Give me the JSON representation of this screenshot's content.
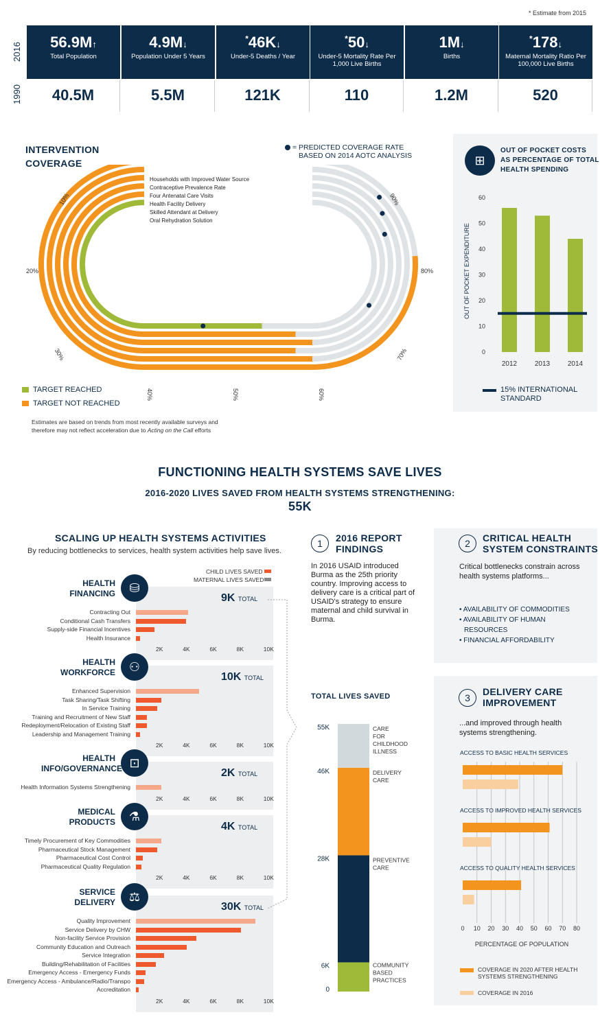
{
  "footnote": "* Estimate from 2015",
  "years": {
    "top": "2016",
    "bottom": "1990"
  },
  "stats": [
    {
      "v2016": "56.9M",
      "arrow": "↑",
      "star": "",
      "label": "Total Population",
      "v1990": "40.5M"
    },
    {
      "v2016": "4.9M",
      "arrow": "↓",
      "star": "",
      "label": "Population Under 5 Years",
      "v1990": "5.5M"
    },
    {
      "v2016": "46K",
      "arrow": "↓",
      "star": "*",
      "label": "Under-5 Deaths / Year",
      "v1990": "121K"
    },
    {
      "v2016": "50",
      "arrow": "↓",
      "star": "*",
      "label": "Under-5 Mortality Rate Per 1,000 Live Births",
      "v1990": "110"
    },
    {
      "v2016": "1M",
      "arrow": "↓",
      "star": "",
      "label": "Births",
      "v1990": "1.2M"
    },
    {
      "v2016": "178",
      "arrow": "↓",
      "star": "*",
      "label": "Maternal Mortality Ratio Per 100,000 Live Births",
      "v1990": "520"
    }
  ],
  "intervention": {
    "title1": "INTERVENTION",
    "title2": "COVERAGE",
    "predicted_note1": "= PREDICTED COVERAGE RATE",
    "predicted_note2": "BASED ON 2014 AOTC ANALYSIS",
    "legend_reached": "TARGET REACHED",
    "legend_not": "TARGET NOT REACHED",
    "footnote1": "Estimates are based on trends from most recently available surveys and",
    "footnote2": "therefore may not reflect acceleration due to ",
    "footnote_italic": "Acting on the Call",
    "footnote3": " efforts",
    "colors": {
      "reached": "#9fba38",
      "not": "#f3941e",
      "track": "#dfe3e5",
      "dot": "#0d2c4a"
    }
  },
  "chart_data": [
    {
      "type": "radial-track",
      "title": "INTERVENTION COVERAGE",
      "axis_ticks": [
        "10%",
        "20%",
        "30%",
        "40%",
        "50%",
        "60%",
        "70%",
        "80%",
        "90%"
      ],
      "series": [
        {
          "name": "Households with Improved Water Source",
          "value": 81,
          "predicted": null,
          "status": "not"
        },
        {
          "name": "Contraceptive Prevalence Rate",
          "value": 60,
          "predicted": 90,
          "status": "not"
        },
        {
          "name": "Four Antenatal Care Visits",
          "value": 58,
          "predicted": 88,
          "status": "not"
        },
        {
          "name": "Health Facility Delivery",
          "value": 60,
          "predicted": 85,
          "status": "not"
        },
        {
          "name": "Skilled Attendant at Delivery",
          "value": 58,
          "predicted": 72,
          "status": "not"
        },
        {
          "name": "Oral Rehydration Solution",
          "value": 54,
          "predicted": 47,
          "status": "reached"
        }
      ]
    },
    {
      "type": "bar",
      "title": "OUT OF POCKET COSTS AS PERCENTAGE OF TOTAL HEALTH SPENDING",
      "categories": [
        "2012",
        "2013",
        "2014"
      ],
      "values": [
        56,
        53,
        44
      ],
      "ylabel": "OUT OF POCKET EXPENDITURE",
      "ylim": [
        0,
        60
      ],
      "yticks": [
        0,
        10,
        20,
        30,
        40,
        50,
        60
      ],
      "reference_line": {
        "value": 15,
        "label": "15% INTERNATIONAL STANDARD"
      }
    },
    {
      "type": "bar",
      "title": "SCALING UP HEALTH SYSTEMS ACTIVITIES",
      "xlim": [
        0,
        10000
      ],
      "xticks": [
        "2K",
        "4K",
        "6K",
        "8K",
        "10K"
      ],
      "groups": [
        {
          "name": "HEALTH FINANCING",
          "total": "9K",
          "items": [
            {
              "label": "Contracting Out",
              "child": 3900,
              "maternal": 0,
              "light": true
            },
            {
              "label": "Conditional Cash Transfers",
              "child": 3700,
              "maternal": 0
            },
            {
              "label": "Supply-side Financial Incentives",
              "child": 1400,
              "maternal": 0
            },
            {
              "label": "Health Insurance",
              "child": 300,
              "maternal": 0
            }
          ]
        },
        {
          "name": "HEALTH WORKFORCE",
          "total": "10K",
          "items": [
            {
              "label": "Enhanced Supervision",
              "child": 4700,
              "maternal": 0,
              "light": true
            },
            {
              "label": "Task Sharing/Task Shifting",
              "child": 1900,
              "maternal": 0
            },
            {
              "label": "In Service Training",
              "child": 1600,
              "maternal": 0
            },
            {
              "label": "Training and Recruitment of New Staff",
              "child": 800,
              "maternal": 0
            },
            {
              "label": "Redeployment/Relocation of Existing Staff",
              "child": 800,
              "maternal": 0
            },
            {
              "label": "Leadership and Management Training",
              "child": 300,
              "maternal": 0
            }
          ]
        },
        {
          "name": "HEALTH INFO/GOVERNANCE",
          "total": "2K",
          "items": [
            {
              "label": "Health Information Systems Strengthening",
              "child": 1900,
              "maternal": 0,
              "light": true
            }
          ]
        },
        {
          "name": "MEDICAL PRODUCTS",
          "total": "4K",
          "items": [
            {
              "label": "Timely Procurement of Key Commodities",
              "child": 1900,
              "maternal": 0,
              "light": true
            },
            {
              "label": "Pharmaceutical Stock Management",
              "child": 1600,
              "maternal": 0
            },
            {
              "label": "Pharmaceutical Cost Control",
              "child": 500,
              "maternal": 0
            },
            {
              "label": "Pharmaceutical Quality Regulation",
              "child": 400,
              "maternal": 0
            }
          ]
        },
        {
          "name": "SERVICE DELIVERY",
          "total": "30K",
          "items": [
            {
              "label": "Quality Improvement",
              "child": 8900,
              "maternal": 0,
              "light": true
            },
            {
              "label": "Service Delivery by CHW",
              "child": 7800,
              "maternal": 0
            },
            {
              "label": "Non-facility Service Provision",
              "child": 4500,
              "maternal": 0
            },
            {
              "label": "Community Education and Outreach",
              "child": 3800,
              "maternal": 0
            },
            {
              "label": "Service Integration",
              "child": 2100,
              "maternal": 0
            },
            {
              "label": "Building/Rehabilitation of Facilities",
              "child": 1500,
              "maternal": 0
            },
            {
              "label": "Emergency Access - Emergency Funds",
              "child": 700,
              "maternal": 0
            },
            {
              "label": "Emergency Access - Ambulance/Radio/Transpo",
              "child": 600,
              "maternal": 0
            },
            {
              "label": "Accreditation",
              "child": 200,
              "maternal": 0
            }
          ]
        }
      ]
    },
    {
      "type": "stacked-bar",
      "title": "TOTAL LIVES SAVED",
      "segments": [
        {
          "name": "COMMUNITY BASED PRACTICES",
          "from": 0,
          "to": 6
        },
        {
          "name": "PREVENTIVE CARE",
          "from": 6,
          "to": 28
        },
        {
          "name": "DELIVERY CARE",
          "from": 28,
          "to": 46
        },
        {
          "name": "CARE FOR CHILDHOOD ILLNESS",
          "from": 46,
          "to": 55
        }
      ],
      "ticks": [
        "0",
        "6K",
        "28K",
        "46K",
        "55K"
      ]
    },
    {
      "type": "bar",
      "title": "DELIVERY CARE IMPROVEMENT",
      "xlabel": "PERCENTAGE OF POPULATION",
      "xlim": [
        0,
        80
      ],
      "xticks": [
        "0",
        "10",
        "20",
        "30",
        "40",
        "50",
        "60",
        "70",
        "80"
      ],
      "groups": [
        {
          "name": "ACCESS TO BASIC HEALTH SERVICES",
          "coverage_2020": 70,
          "coverage_2016": 39
        },
        {
          "name": "ACCESS TO IMPROVED HEALTH SERVICES",
          "coverage_2020": 61,
          "coverage_2016": 20
        },
        {
          "name": "ACCESS TO QUALITY HEALTH SERVICES",
          "coverage_2020": 41,
          "coverage_2016": 8
        }
      ],
      "legend": [
        "COVERAGE IN 2020 AFTER HEALTH SYSTEMS STRENGTHENING",
        "COVERAGE IN 2016"
      ]
    }
  ],
  "oop": {
    "title1": "OUT OF POCKET COSTS",
    "title2": "AS PERCENTAGE OF TOTAL",
    "title3": "HEALTH SPENDING",
    "ylabel": "OUT OF POCKET EXPENDITURE",
    "legend1": "15% INTERNATIONAL",
    "legend2": "STANDARD",
    "bar_color": "#9fba38",
    "line_color": "#0d2c4a"
  },
  "main": {
    "title": "FUNCTIONING HEALTH SYSTEMS SAVE LIVES",
    "subtitle": "2016-2020 LIVES SAVED FROM HEALTH SYSTEMS STRENGTHENING:",
    "total": "55K"
  },
  "scaling": {
    "title": "SCALING UP HEALTH SYSTEMS ACTIVITIES",
    "subtitle": "By reducing bottlenecks to services, health system activities help save lives.",
    "legend_child": "CHILD LIVES SAVED",
    "legend_maternal": "MATERNAL LIVES SAVED",
    "total_word": "TOTAL",
    "group_titles": [
      [
        "HEALTH",
        "FINANCING"
      ],
      [
        "HEALTH",
        "WORKFORCE"
      ],
      [
        "HEALTH",
        "INFO/GOVERNANCE"
      ],
      [
        "MEDICAL",
        "PRODUCTS"
      ],
      [
        "SERVICE",
        "DELIVERY"
      ]
    ]
  },
  "report": {
    "n1": "1",
    "title1a": "2016 REPORT",
    "title1b": "FINDINGS",
    "body": "In 2016 USAID introduced Burma as the 25th priority country.  Improving access to delivery care is a critical part of USAID's strategy to ensure maternal and child survival in Burma.",
    "n2": "2",
    "title2a": "CRITICAL HEALTH",
    "title2b": "SYSTEM CONSTRAINTS",
    "body2": "Critical bottlenecks constrain across health systems platforms...",
    "bullets": [
      "• AVAILABILITY OF COMMODITIES",
      "• AVAILABILITY OF HUMAN",
      "RESOURCES",
      "• FINANCIAL AFFORDABILITY"
    ],
    "n3": "3",
    "title3a": "DELIVERY CARE",
    "title3b": "IMPROVEMENT",
    "body3": "...and improved through health systems strengthening."
  },
  "lives": {
    "title": "TOTAL LIVES SAVED",
    "colors": [
      "#9fba38",
      "#0d2c4a",
      "#f3941e",
      "#d1d9dd"
    ]
  },
  "delivery": {
    "xlabel": "PERCENTAGE OF POPULATION",
    "legend2020": "COVERAGE IN 2020 AFTER HEALTH SYSTEMS STRENGTHENING",
    "legend2016": "COVERAGE IN 2016",
    "color2020": "#f3941e",
    "color2016": "#f9cfa0"
  }
}
